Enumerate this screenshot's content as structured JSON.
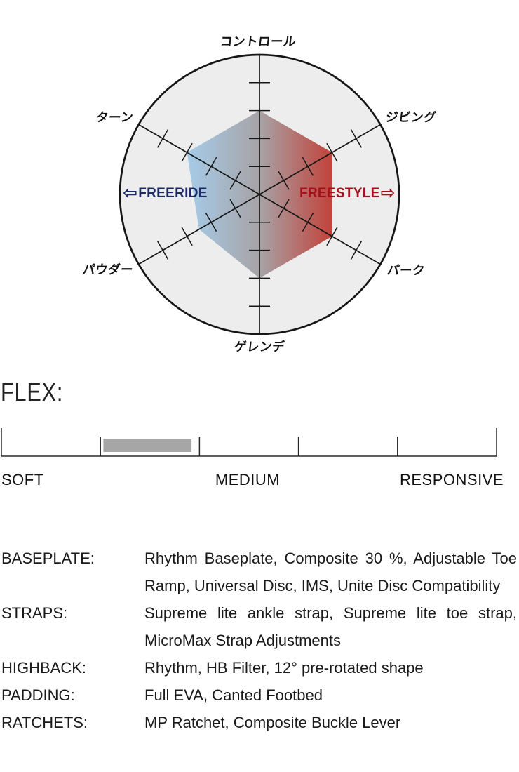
{
  "radar": {
    "axis_labels": {
      "top": "コントロール",
      "top_right": "ジビング",
      "bottom_right": "パーク",
      "bottom": "ゲレンデ",
      "bottom_left": "パウダー",
      "top_left": "ターン"
    },
    "freeride_arrow": "⇦",
    "freeride_label": "FREERIDE",
    "freestyle_label": "FREESTYLE",
    "freestyle_arrow": "⇨",
    "freeride_color": "#1c2a67",
    "freestyle_color": "#a5101b"
  },
  "flex": {
    "title": "FLEX:",
    "labels": [
      "SOFT",
      "MEDIUM",
      "RESPONSIVE"
    ]
  },
  "specs": {
    "rows": [
      {
        "label": "BASEPLATE:",
        "value": "Rhythm Baseplate, Composite 30 %, Adjustable Toe Ramp, Universal Disc, IMS, Unite Disc Compatibility"
      },
      {
        "label": "STRAPS:",
        "value": "Supreme lite ankle strap, Supreme lite toe strap, MicroMax Strap Adjustments"
      },
      {
        "label": "HIGHBACK:",
        "value": "Rhythm, HB Filter, 12° pre-rotated shape"
      },
      {
        "label": "PADDING:",
        "value": "Full EVA, Canted Footbed"
      },
      {
        "label": "RATCHETS:",
        "value": "MP Ratchet, Composite Buckle Lever"
      }
    ]
  },
  "chart_data": [
    {
      "type": "radar",
      "categories": [
        "コントロール",
        "ジビング",
        "パーク",
        "ゲレンデ",
        "パウダー",
        "ターン"
      ],
      "values": [
        3,
        3,
        3,
        3,
        2.5,
        3
      ],
      "scale_max": 5,
      "ticks_per_axis": 4,
      "axis_angles_deg": [
        90,
        30,
        -30,
        -90,
        -150,
        150
      ],
      "annotations": [
        "⇦FREERIDE",
        "FREESTYLE⇨"
      ],
      "annotation_colors": [
        "#1c2a67",
        "#a5101b"
      ],
      "circle_fill": "#ededee",
      "line_color": "#161616",
      "gradient_stops": [
        {
          "offset": 0,
          "color": "#a6cce9"
        },
        {
          "offset": 0.5,
          "color": "#a7a3a6"
        },
        {
          "offset": 1,
          "color": "#c2423a"
        }
      ]
    },
    {
      "type": "scale",
      "title": "FLEX:",
      "tick_labels": [
        "SOFT",
        "MEDIUM",
        "RESPONSIVE"
      ],
      "segments": 5,
      "indicator_range_segments": [
        1.03,
        1.92
      ],
      "indicator_color": "#a6a6a6",
      "line_color": "#2a2a2a"
    }
  ]
}
